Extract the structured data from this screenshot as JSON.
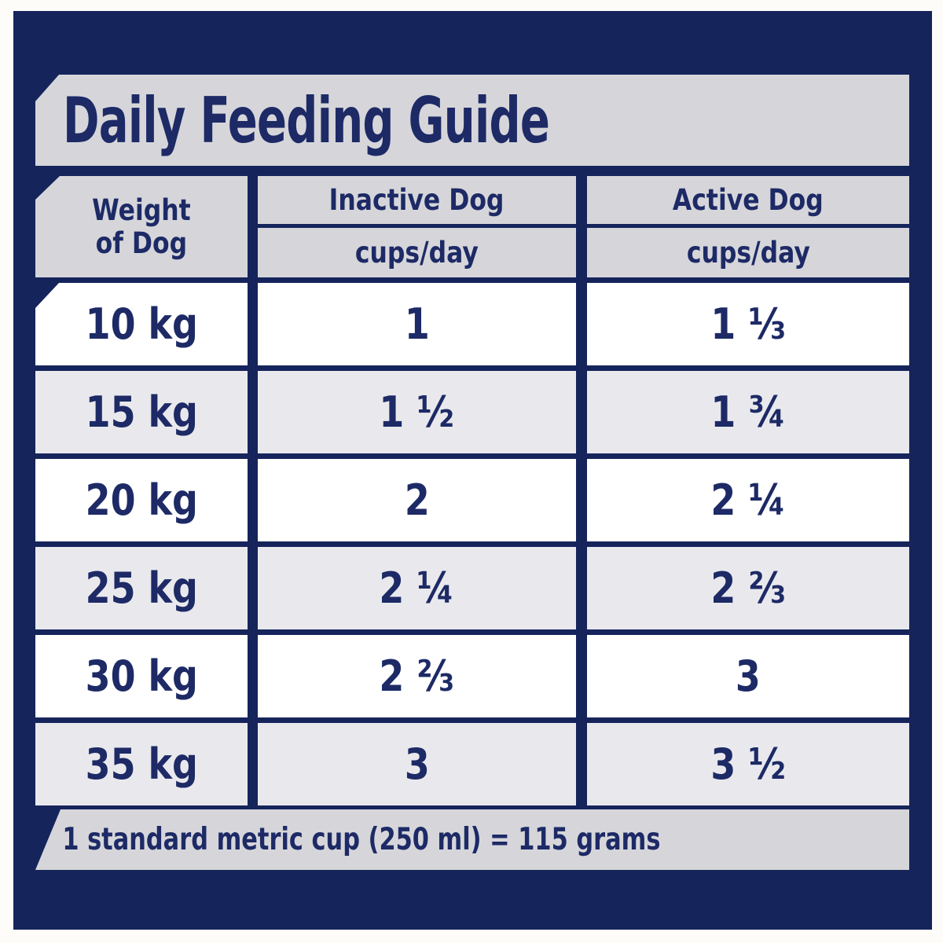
{
  "title": "Daily Feeding Guide",
  "header": {
    "weight_line1": "Weight",
    "weight_line2": "of Dog",
    "inactive_label": "Inactive Dog",
    "active_label": "Active Dog",
    "unit_label": "cups/day"
  },
  "rows": [
    {
      "weight": "10 kg",
      "inactive": "1",
      "active": "1 ⅓"
    },
    {
      "weight": "15 kg",
      "inactive": "1 ½",
      "active": "1 ¾"
    },
    {
      "weight": "20 kg",
      "inactive": "2",
      "active": "2 ¼"
    },
    {
      "weight": "25 kg",
      "inactive": "2 ¼",
      "active": "2 ⅔"
    },
    {
      "weight": "30 kg",
      "inactive": "2 ⅔",
      "active": "3"
    },
    {
      "weight": "35 kg",
      "inactive": "3",
      "active": "3 ½"
    }
  ],
  "footer": {
    "note": "1 standard metric cup (250 ml) = 115 grams"
  },
  "colors": {
    "navy_panel": "#16245c",
    "text_navy": "#1d2a66",
    "banner_gray": "#d6d6da",
    "row_alt_gray": "#e9e9ed",
    "row_white": "#ffffff",
    "page_background": "#fdfcf8"
  },
  "chart_data": {
    "type": "table",
    "title": "Daily Feeding Guide",
    "columns": [
      "Weight of Dog",
      "Inactive Dog cups/day",
      "Active Dog cups/day"
    ],
    "rows": [
      [
        "10 kg",
        "1",
        "1 ⅓"
      ],
      [
        "15 kg",
        "1 ½",
        "1 ¾"
      ],
      [
        "20 kg",
        "2",
        "2 ¼"
      ],
      [
        "25 kg",
        "2 ¼",
        "2 ⅔"
      ],
      [
        "30 kg",
        "2 ⅔",
        "3"
      ],
      [
        "35 kg",
        "3",
        "3 ½"
      ]
    ],
    "note": "1 standard metric cup (250 ml) = 115 grams"
  }
}
